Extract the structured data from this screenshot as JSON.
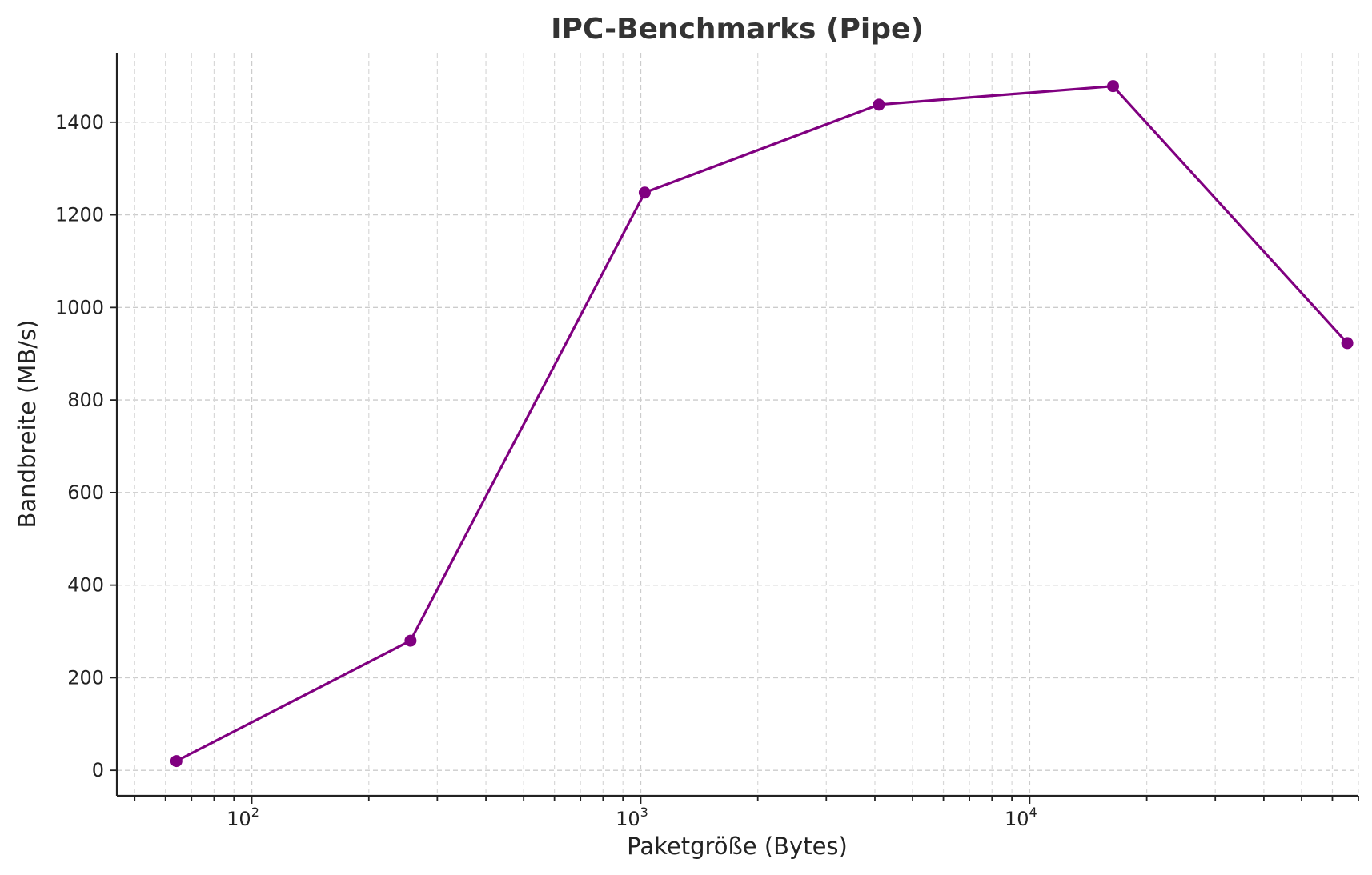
{
  "chart_data": {
    "type": "line",
    "title": "IPC-Benchmarks (Pipe)",
    "xlabel": "Paketgröße (Bytes)",
    "ylabel": "Bandbreite (MB/s)",
    "xscale": "log",
    "xlim": [
      45,
      70000
    ],
    "ylim": [
      -55,
      1550
    ],
    "x_ticks": [
      {
        "value": 100,
        "base": "10",
        "exp": "2"
      },
      {
        "value": 1000,
        "base": "10",
        "exp": "3"
      },
      {
        "value": 10000,
        "base": "10",
        "exp": "4"
      }
    ],
    "y_ticks": [
      0,
      200,
      400,
      600,
      800,
      1000,
      1200,
      1400
    ],
    "grid": true,
    "series": [
      {
        "color": "#800080",
        "x": [
          64,
          256,
          1024,
          4096,
          16384,
          65536
        ],
        "y": [
          20,
          280,
          1248,
          1438,
          1478,
          923
        ]
      }
    ]
  }
}
